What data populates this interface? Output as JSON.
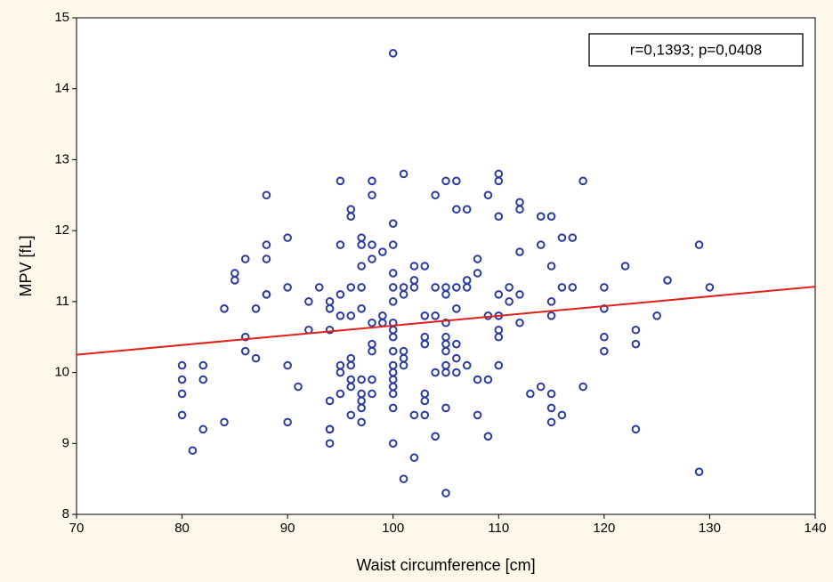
{
  "chart_data": {
    "type": "scatter",
    "x_label": "Waist circumference [cm]",
    "y_label": "MPV [fL]",
    "annotation": "r=0,1393; p=0,0408",
    "color": "#2b3c9e",
    "x": [
      80,
      80,
      80,
      80,
      81,
      82,
      82,
      82,
      84,
      84,
      85,
      85,
      86,
      86,
      86,
      87,
      87,
      88,
      88,
      88,
      88,
      88,
      90,
      90,
      90,
      90,
      91,
      92,
      92,
      93,
      94,
      94,
      94,
      94,
      94,
      94,
      94,
      95,
      95,
      95,
      95,
      95,
      95,
      95,
      96,
      96,
      96,
      96,
      96,
      96,
      96,
      96,
      96,
      97,
      97,
      97,
      97,
      97,
      97,
      97,
      97,
      97,
      97,
      98,
      98,
      98,
      98,
      98,
      98,
      98,
      98,
      98,
      99,
      99,
      99,
      100,
      100,
      100,
      100,
      100,
      100,
      100,
      100,
      100,
      100,
      100,
      100,
      100,
      100,
      100,
      100,
      100,
      101,
      101,
      101,
      101,
      101,
      101,
      101,
      102,
      102,
      102,
      102,
      102,
      103,
      103,
      103,
      103,
      103,
      103,
      103,
      104,
      104,
      104,
      104,
      104,
      105,
      105,
      105,
      105,
      105,
      105,
      105,
      105,
      105,
      105,
      105,
      106,
      106,
      106,
      106,
      106,
      106,
      106,
      107,
      107,
      107,
      107,
      108,
      108,
      108,
      108,
      109,
      109,
      109,
      109,
      110,
      110,
      110,
      110,
      110,
      110,
      110,
      110,
      111,
      111,
      112,
      112,
      112,
      112,
      112,
      113,
      114,
      114,
      114,
      115,
      115,
      115,
      115,
      115,
      115,
      115,
      116,
      116,
      116,
      117,
      117,
      118,
      118,
      120,
      120,
      120,
      120,
      122,
      123,
      123,
      123,
      125,
      126,
      129,
      129,
      130
    ],
    "values": [
      10.1,
      9.9,
      9.7,
      9.4,
      8.9,
      10.1,
      9.9,
      9.2,
      10.9,
      9.3,
      11.4,
      11.3,
      11.6,
      10.5,
      10.3,
      10.9,
      10.2,
      12.5,
      11.8,
      11.6,
      11.1,
      11.1,
      11.9,
      11.2,
      10.1,
      9.3,
      9.8,
      11.0,
      10.6,
      11.2,
      11.0,
      10.9,
      10.6,
      9.6,
      9.2,
      9.2,
      9.0,
      12.7,
      11.8,
      11.1,
      10.8,
      10.1,
      10.0,
      9.7,
      12.3,
      12.2,
      11.2,
      10.8,
      10.2,
      10.1,
      9.9,
      9.8,
      9.4,
      11.9,
      11.8,
      11.5,
      11.2,
      10.9,
      9.9,
      9.7,
      9.6,
      9.5,
      9.3,
      12.7,
      12.5,
      11.8,
      11.6,
      10.7,
      10.4,
      10.3,
      9.9,
      9.7,
      11.7,
      10.8,
      10.7,
      14.5,
      12.1,
      11.8,
      11.4,
      11.2,
      11.0,
      10.7,
      10.6,
      10.5,
      10.3,
      10.1,
      10.0,
      9.9,
      9.8,
      9.7,
      9.5,
      9.0,
      12.8,
      11.2,
      11.1,
      10.3,
      10.2,
      10.1,
      8.5,
      11.5,
      11.3,
      11.2,
      9.4,
      8.8,
      11.5,
      10.8,
      10.5,
      10.4,
      9.7,
      9.6,
      9.4,
      12.5,
      11.2,
      10.8,
      10.0,
      9.1,
      12.7,
      11.2,
      11.1,
      10.7,
      10.5,
      10.4,
      10.3,
      10.1,
      10.0,
      9.5,
      8.3,
      12.7,
      12.3,
      11.2,
      10.9,
      10.4,
      10.2,
      10.0,
      12.3,
      11.3,
      11.2,
      10.1,
      11.6,
      11.4,
      9.9,
      9.4,
      12.5,
      10.8,
      9.9,
      9.1,
      12.8,
      12.7,
      12.2,
      11.1,
      10.8,
      10.6,
      10.5,
      10.1,
      11.2,
      11.0,
      12.4,
      12.3,
      11.7,
      11.1,
      10.7,
      9.7,
      12.2,
      11.8,
      9.8,
      12.2,
      11.5,
      11.0,
      10.8,
      9.7,
      9.5,
      9.3,
      11.9,
      11.2,
      9.4,
      11.9,
      11.2,
      12.7,
      9.8,
      11.2,
      10.9,
      10.5,
      10.3,
      11.5,
      10.6,
      10.4,
      9.2,
      10.8,
      11.3,
      11.8,
      8.6,
      11.2
    ],
    "trendline": {
      "x": [
        70,
        140
      ],
      "values": [
        10.25,
        11.21
      ],
      "color": "#e0201b"
    },
    "xlim": [
      70,
      140
    ],
    "xticks": [
      70,
      80,
      90,
      100,
      110,
      120,
      130,
      140
    ],
    "ylim": [
      8,
      15
    ],
    "yticks": [
      8,
      9,
      10,
      11,
      12,
      13,
      14,
      15
    ],
    "grid": false
  }
}
